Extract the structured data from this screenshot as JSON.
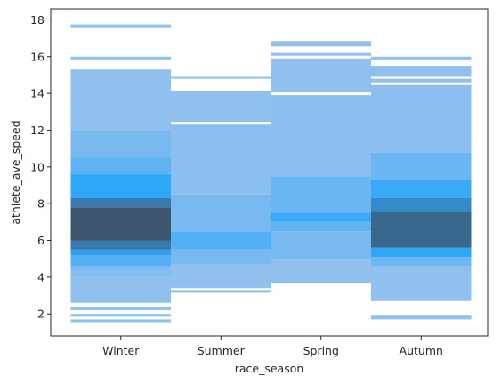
{
  "chart_data": {
    "type": "heatmap",
    "subtype": "2d-histogram",
    "title": "",
    "xlabel": "race_season",
    "ylabel": "athlete_ave_speed",
    "categories": [
      "Winter",
      "Summer",
      "Spring",
      "Autumn"
    ],
    "ylim": [
      0.8,
      18.6
    ],
    "yticks": [
      2,
      4,
      6,
      8,
      10,
      12,
      14,
      16,
      18
    ],
    "grid": false,
    "legend": "none",
    "colors": {
      "light": "#a9c6ec",
      "mid": "#2ea7f7",
      "dark": "#3f4c5e",
      "frame": "#262626",
      "background": "#ffffff"
    },
    "series": [
      {
        "category": "Winter",
        "intensity_bands": [
          {
            "y0": 1.55,
            "y1": 1.7,
            "level": 0.1
          },
          {
            "y0": 1.85,
            "y1": 2.0,
            "level": 0.1
          },
          {
            "y0": 2.2,
            "y1": 2.4,
            "level": 0.1
          },
          {
            "y0": 2.6,
            "y1": 4.0,
            "level": 0.1
          },
          {
            "y0": 4.0,
            "y1": 4.6,
            "level": 0.15
          },
          {
            "y0": 4.6,
            "y1": 5.2,
            "level": 0.35
          },
          {
            "y0": 5.2,
            "y1": 5.5,
            "level": 0.55
          },
          {
            "y0": 5.5,
            "y1": 6.0,
            "level": 0.75
          },
          {
            "y0": 6.0,
            "y1": 7.8,
            "level": 0.95
          },
          {
            "y0": 7.8,
            "y1": 8.3,
            "level": 0.75
          },
          {
            "y0": 8.3,
            "y1": 9.6,
            "level": 0.5
          },
          {
            "y0": 9.6,
            "y1": 10.5,
            "level": 0.3
          },
          {
            "y0": 10.5,
            "y1": 12.0,
            "level": 0.2
          },
          {
            "y0": 12.0,
            "y1": 15.3,
            "level": 0.1
          },
          {
            "y0": 15.85,
            "y1": 16.0,
            "level": 0.1
          },
          {
            "y0": 17.6,
            "y1": 17.75,
            "level": 0.1
          }
        ]
      },
      {
        "category": "Summer",
        "intensity_bands": [
          {
            "y0": 3.15,
            "y1": 3.3,
            "level": 0.1
          },
          {
            "y0": 3.4,
            "y1": 3.5,
            "level": 0.1
          },
          {
            "y0": 3.5,
            "y1": 4.7,
            "level": 0.1
          },
          {
            "y0": 4.7,
            "y1": 5.5,
            "level": 0.2
          },
          {
            "y0": 5.5,
            "y1": 6.5,
            "level": 0.35
          },
          {
            "y0": 6.5,
            "y1": 8.5,
            "level": 0.2
          },
          {
            "y0": 8.5,
            "y1": 12.3,
            "level": 0.12
          },
          {
            "y0": 12.45,
            "y1": 14.15,
            "level": 0.1
          },
          {
            "y0": 14.8,
            "y1": 14.9,
            "level": 0.1
          }
        ]
      },
      {
        "category": "Spring",
        "intensity_bands": [
          {
            "y0": 3.7,
            "y1": 5.0,
            "level": 0.1
          },
          {
            "y0": 5.0,
            "y1": 6.5,
            "level": 0.2
          },
          {
            "y0": 6.5,
            "y1": 7.0,
            "level": 0.3
          },
          {
            "y0": 7.0,
            "y1": 7.5,
            "level": 0.45
          },
          {
            "y0": 7.5,
            "y1": 9.5,
            "level": 0.25
          },
          {
            "y0": 9.5,
            "y1": 13.9,
            "level": 0.12
          },
          {
            "y0": 14.05,
            "y1": 15.9,
            "level": 0.1
          },
          {
            "y0": 16.05,
            "y1": 16.2,
            "level": 0.1
          },
          {
            "y0": 16.55,
            "y1": 16.85,
            "level": 0.1
          }
        ]
      },
      {
        "category": "Autumn",
        "intensity_bands": [
          {
            "y0": 1.7,
            "y1": 1.95,
            "level": 0.1
          },
          {
            "y0": 2.7,
            "y1": 4.6,
            "level": 0.1
          },
          {
            "y0": 4.6,
            "y1": 5.1,
            "level": 0.25
          },
          {
            "y0": 5.1,
            "y1": 5.6,
            "level": 0.5
          },
          {
            "y0": 5.6,
            "y1": 7.6,
            "level": 0.85
          },
          {
            "y0": 7.6,
            "y1": 8.3,
            "level": 0.65
          },
          {
            "y0": 8.3,
            "y1": 9.3,
            "level": 0.45
          },
          {
            "y0": 9.3,
            "y1": 10.8,
            "level": 0.25
          },
          {
            "y0": 10.8,
            "y1": 14.45,
            "level": 0.12
          },
          {
            "y0": 14.6,
            "y1": 14.8,
            "level": 0.1
          },
          {
            "y0": 14.9,
            "y1": 15.5,
            "level": 0.1
          },
          {
            "y0": 15.85,
            "y1": 16.0,
            "level": 0.1
          }
        ]
      }
    ]
  }
}
